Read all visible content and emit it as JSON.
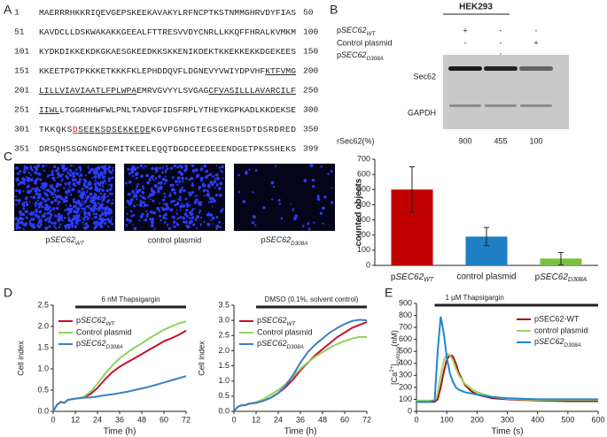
{
  "panels": [
    "A",
    "B",
    "C",
    "D",
    "E"
  ],
  "sequence": {
    "rows": [
      {
        "start": "1",
        "end": "50",
        "segments": [
          {
            "text": "MAERRRHKKRIQEVGEPSKEEKAVAKYLRFNCPTKSTNMMGHRVDYFIAS",
            "style": "plain"
          }
        ]
      },
      {
        "start": "51",
        "end": "100",
        "segments": [
          {
            "text": "KAVDCLLDSKWAKAKKGEEALFTTRESVVDYCNRLLKKQFFHRALKVMKM",
            "style": "plain"
          }
        ]
      },
      {
        "start": "101",
        "end": "150",
        "segments": [
          {
            "text": "KYDKDIKKEKDKGKAESGKEEDKKSKKENIKDEKTKKEKKEKKDGEKEES",
            "style": "plain"
          }
        ]
      },
      {
        "start": "151",
        "end": "200",
        "segments": [
          {
            "text": "KKEETPGTPKKKETKKKFKLEPHDDQVFLDGNEVYVWIYDPVHF",
            "style": "plain"
          },
          {
            "text": "KTFVMG",
            "style": "underline"
          }
        ]
      },
      {
        "start": "201",
        "end": "250",
        "segments": [
          {
            "text": "LILLVIAVIAATLFPLWPA",
            "style": "underline"
          },
          {
            "text": "EMRVGVYYLSVGAG",
            "style": "plain"
          },
          {
            "text": "CFVASILLLAVARCILF",
            "style": "underline"
          }
        ]
      },
      {
        "start": "251",
        "end": "300",
        "segments": [
          {
            "text": "IIWL",
            "style": "underline"
          },
          {
            "text": "LTGGRHHWFWLPNLTADVGFIDSFRPLYTHEYKGPKADLKKDEKSE",
            "style": "plain"
          }
        ]
      },
      {
        "start": "301",
        "end": "350",
        "segments": [
          {
            "text": "TKKQKS",
            "style": "plain"
          },
          {
            "text": "D",
            "style": "mutation"
          },
          {
            "text": "SEEKSDSEKKEDE",
            "style": "underline"
          },
          {
            "text": "KGVPGNHGTEGSGERHSDTDSRDRED",
            "style": "plain"
          }
        ]
      },
      {
        "start": "351",
        "end": "399",
        "segments": [
          {
            "text": "DRSQHSSGNGNDFEMITKEELEQQTDGDCEEDEEENDGETPKSSHEKS",
            "style": "plain"
          }
        ]
      }
    ]
  },
  "blot": {
    "title": "HEK293",
    "rows": [
      {
        "label": [
          {
            "text": "p",
            "style": "plain"
          },
          {
            "text": "SEC62",
            "style": "italic"
          },
          {
            "text": "WT",
            "style": "sub"
          }
        ],
        "marks": [
          "+",
          "-",
          "-"
        ]
      },
      {
        "label": "Control plasmid",
        "marks": [
          "-",
          "-",
          "+"
        ]
      },
      {
        "label": [
          {
            "text": "p",
            "style": "plain"
          },
          {
            "text": "SEC62",
            "style": "italic"
          },
          {
            "text": "D308A",
            "style": "sub"
          }
        ],
        "marks": [
          "-",
          "+",
          "-"
        ]
      }
    ],
    "bands": [
      "Sec62",
      "GAPDH"
    ],
    "quant_label": "rSec62(%)",
    "quant_values": [
      900,
      455,
      100
    ]
  },
  "micrographs": [
    [
      {
        "text": "p",
        "style": "plain"
      },
      {
        "text": "SEC62",
        "style": "italic"
      },
      {
        "text": "WT",
        "style": "sub"
      }
    ],
    "control plasmid",
    [
      {
        "text": "p",
        "style": "plain"
      },
      {
        "text": "SEC62",
        "style": "italic"
      },
      {
        "text": "D308A",
        "style": "sub"
      }
    ]
  ],
  "chart_data": [
    {
      "type": "bar",
      "ylabel": "counted objects",
      "categories": [
        [
          {
            "text": "p",
            "style": "plain"
          },
          {
            "text": "SEC62",
            "style": "italic"
          },
          {
            "text": "WT",
            "style": "sub"
          }
        ],
        "control plasmid",
        [
          {
            "text": "p",
            "style": "plain"
          },
          {
            "text": "SEC62",
            "style": "italic"
          },
          {
            "text": "D308A",
            "style": "sub"
          }
        ]
      ],
      "values": [
        500,
        190,
        45
      ],
      "errors": [
        150,
        60,
        40
      ],
      "colors": [
        "#c00000",
        "#1f7fc4",
        "#7ac143"
      ],
      "ylim": [
        0,
        700
      ],
      "yticks": [
        0,
        100,
        200,
        300,
        400,
        500,
        600,
        700
      ]
    },
    {
      "type": "line",
      "xlabel": "Time (h)",
      "ylabel": "Cell index",
      "legend": "upper left",
      "annotation": {
        "text": "6 nM Thapsigargin",
        "range": [
          12,
          72
        ]
      },
      "x": [
        0,
        2,
        4,
        6,
        8,
        12,
        16,
        20,
        24,
        28,
        32,
        36,
        40,
        44,
        48,
        52,
        56,
        60,
        64,
        68,
        72
      ],
      "series": [
        {
          "name": [
            {
              "text": "p",
              "style": "plain"
            },
            {
              "text": "SEC62",
              "style": "italic"
            },
            {
              "text": "WT",
              "style": "sub"
            }
          ],
          "color": "#c8102e",
          "values": [
            0,
            0.15,
            0.22,
            0.2,
            0.27,
            0.3,
            0.32,
            0.4,
            0.55,
            0.75,
            0.92,
            1.05,
            1.15,
            1.25,
            1.35,
            1.45,
            1.55,
            1.65,
            1.72,
            1.8,
            1.9
          ]
        },
        {
          "name": "Control plasmid",
          "color": "#8ed35a",
          "values": [
            0,
            0.15,
            0.22,
            0.2,
            0.27,
            0.3,
            0.33,
            0.45,
            0.65,
            0.88,
            1.08,
            1.25,
            1.38,
            1.5,
            1.6,
            1.72,
            1.82,
            1.92,
            2.0,
            2.07,
            2.12
          ]
        },
        {
          "name": [
            {
              "text": "p",
              "style": "plain"
            },
            {
              "text": "SEC62",
              "style": "italic"
            },
            {
              "text": "D308A",
              "style": "sub"
            }
          ],
          "color": "#3d7fc4",
          "values": [
            0,
            0.15,
            0.22,
            0.2,
            0.27,
            0.3,
            0.32,
            0.33,
            0.35,
            0.38,
            0.4,
            0.43,
            0.46,
            0.5,
            0.54,
            0.58,
            0.63,
            0.68,
            0.73,
            0.78,
            0.83
          ]
        }
      ],
      "xlim": [
        0,
        72
      ],
      "xticks": [
        0,
        12,
        24,
        36,
        48,
        60,
        72
      ],
      "ylim": [
        0,
        2.5
      ],
      "yticks": [
        {
          "value": 0,
          "label": "0.0"
        },
        0.5,
        {
          "value": 1,
          "label": "1.0"
        },
        1.5,
        {
          "value": 2,
          "label": "2.0"
        },
        2.5
      ]
    },
    {
      "type": "line",
      "xlabel": "Time (h)",
      "ylabel": "Cell index",
      "legend": "upper left",
      "annotation": {
        "text": "DMSO (0.1%, solvent control)",
        "range": [
          12,
          72
        ]
      },
      "x": [
        0,
        2,
        4,
        6,
        8,
        12,
        16,
        20,
        24,
        28,
        32,
        36,
        40,
        44,
        48,
        52,
        56,
        60,
        64,
        68,
        72
      ],
      "series": [
        {
          "name": [
            {
              "text": "p",
              "style": "plain"
            },
            {
              "text": "SEC62",
              "style": "italic"
            },
            {
              "text": "WT",
              "style": "sub"
            }
          ],
          "color": "#c8102e",
          "values": [
            0,
            0.15,
            0.2,
            0.2,
            0.25,
            0.28,
            0.35,
            0.45,
            0.6,
            0.8,
            1.05,
            1.35,
            1.6,
            1.85,
            2.05,
            2.25,
            2.45,
            2.6,
            2.75,
            2.85,
            2.95
          ]
        },
        {
          "name": "Control plasmid",
          "color": "#8ed35a",
          "values": [
            0,
            0.15,
            0.2,
            0.2,
            0.25,
            0.3,
            0.4,
            0.55,
            0.7,
            0.9,
            1.15,
            1.4,
            1.62,
            1.8,
            1.95,
            2.1,
            2.22,
            2.32,
            2.4,
            2.45,
            2.45
          ]
        },
        {
          "name": [
            {
              "text": "p",
              "style": "plain"
            },
            {
              "text": "SEC62",
              "style": "italic"
            },
            {
              "text": "D308A",
              "style": "sub"
            }
          ],
          "color": "#3d7fc4",
          "values": [
            0,
            0.15,
            0.2,
            0.2,
            0.25,
            0.28,
            0.35,
            0.45,
            0.6,
            0.85,
            1.2,
            1.6,
            1.95,
            2.2,
            2.4,
            2.6,
            2.75,
            2.88,
            2.98,
            3.02,
            3.0
          ]
        }
      ],
      "xlim": [
        0,
        72
      ],
      "xticks": [
        0,
        12,
        24,
        36,
        48,
        60,
        72
      ],
      "ylim": [
        0,
        3.5
      ],
      "yticks": [
        {
          "value": 0,
          "label": "0.0"
        },
        0.5,
        {
          "value": 1,
          "label": "1.0"
        },
        1.5,
        {
          "value": 2,
          "label": "2.0"
        },
        2.5,
        {
          "value": 3,
          "label": "3.0"
        },
        3.5
      ]
    },
    {
      "type": "line",
      "xlabel": "Time (s)",
      "legend": "upper right",
      "ylabel": [
        {
          "text": "[Ca",
          "style": "plain"
        },
        {
          "text": "2+",
          "style": "sup"
        },
        {
          "text": "]",
          "style": "plain"
        },
        {
          "text": "cytosol",
          "style": "sub"
        },
        {
          "text": "(nM)",
          "style": "plain"
        }
      ],
      "annotation": {
        "text": "1 µM Thapsigargin",
        "range": [
          60,
          600
        ]
      },
      "x": [
        0,
        20,
        40,
        60,
        70,
        80,
        90,
        100,
        110,
        120,
        130,
        140,
        160,
        180,
        200,
        250,
        300,
        400,
        500,
        600
      ],
      "series": [
        {
          "name": "pSEC62-WT",
          "color": "#a01010",
          "values": [
            80,
            80,
            80,
            80,
            100,
            200,
            330,
            430,
            470,
            460,
            400,
            320,
            220,
            170,
            140,
            110,
            100,
            90,
            85,
            85
          ]
        },
        {
          "name": "control plasmid",
          "color": "#9ad55e",
          "values": [
            90,
            90,
            90,
            90,
            150,
            300,
            420,
            480,
            470,
            430,
            360,
            300,
            230,
            190,
            160,
            120,
            105,
            95,
            95,
            95
          ]
        },
        {
          "name": [
            {
              "text": "p",
              "style": "plain"
            },
            {
              "text": "SEC62",
              "style": "italic"
            },
            {
              "text": "D308A",
              "style": "sub"
            }
          ],
          "color": "#1e88d0",
          "values": [
            80,
            80,
            80,
            90,
            500,
            790,
            650,
            450,
            320,
            250,
            200,
            180,
            160,
            150,
            140,
            120,
            110,
            100,
            100,
            100
          ]
        }
      ],
      "xlim": [
        0,
        600
      ],
      "xticks": [
        0,
        100,
        200,
        300,
        400,
        500,
        600
      ],
      "ylim": [
        0,
        900
      ],
      "yticks": [
        0,
        100,
        200,
        300,
        400,
        500,
        600,
        700,
        800,
        900
      ]
    }
  ]
}
